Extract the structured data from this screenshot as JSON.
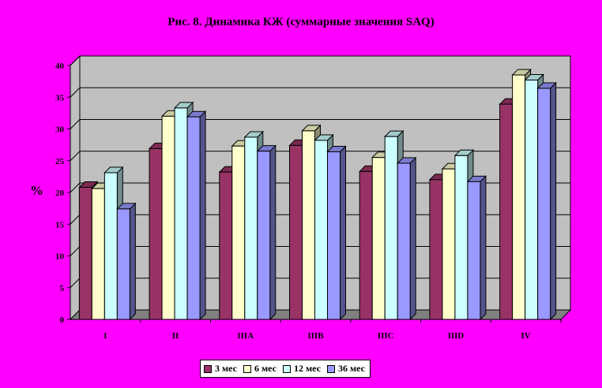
{
  "chart_data": {
    "type": "bar",
    "title": "Рис. 8. Динамика КЖ (суммарные значения SAQ)",
    "xlabel": "",
    "ylabel": "%",
    "ylim": [
      0,
      40
    ],
    "yticks": [
      "0",
      "5",
      "10",
      "15",
      "20",
      "25",
      "30",
      "35",
      "40"
    ],
    "categories": [
      "I",
      "II",
      "IIIA",
      "IIIB",
      "IIIC",
      "IIID",
      "IV"
    ],
    "series": [
      {
        "name": "3  мес",
        "color": "#993366",
        "values": [
          20.8,
          26.9,
          23.2,
          27.4,
          23.3,
          22.0,
          33.9
        ]
      },
      {
        "name": "6 мес",
        "color": "#FFFFCC",
        "values": [
          20.6,
          32.0,
          27.3,
          29.7,
          25.5,
          23.7,
          38.5
        ]
      },
      {
        "name": "12 мес",
        "color": "#CCFFFF",
        "values": [
          23.1,
          33.3,
          28.7,
          28.2,
          28.8,
          25.8,
          37.7
        ]
      },
      {
        "name": "36 мес",
        "color": "#9999FF",
        "values": [
          17.4,
          31.9,
          26.5,
          26.4,
          24.6,
          21.7,
          36.4
        ]
      }
    ],
    "grid": true,
    "legend_position": "bottom",
    "style": "3d-clustered-column"
  }
}
